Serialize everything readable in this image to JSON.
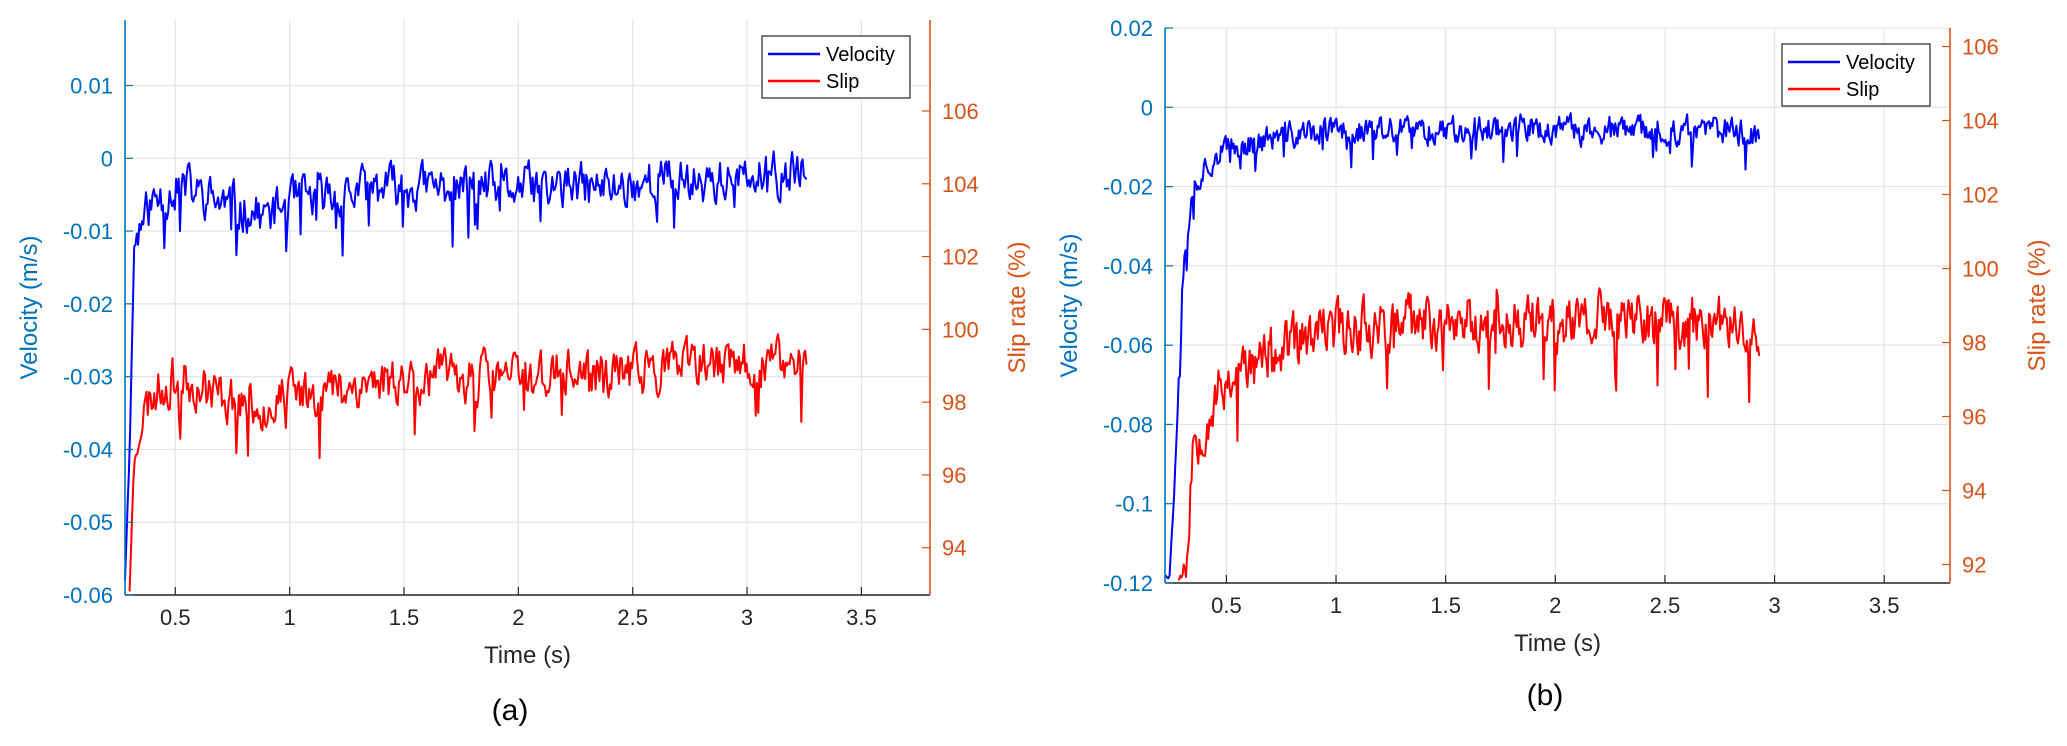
{
  "chart_data": [
    {
      "type": "line",
      "panel_label": "(a)",
      "xlabel": "Time (s)",
      "ylabel_left": "Velocity (m/s)",
      "ylabel_right": "Slip rate (%)",
      "xlim": [
        0.28,
        3.8
      ],
      "ylim_left": [
        -0.06,
        0.019
      ],
      "ylim_right": [
        92.7,
        108.5
      ],
      "xticks": [
        0.5,
        1,
        1.5,
        2,
        2.5,
        3,
        3.5
      ],
      "xtick_labels": [
        "0.5",
        "1",
        "1.5",
        "2",
        "2.5",
        "3",
        "3.5"
      ],
      "yticks_left": [
        -0.06,
        -0.05,
        -0.04,
        -0.03,
        -0.02,
        -0.01,
        0,
        0.01
      ],
      "ytick_labels_left": [
        "-0.06",
        "-0.05",
        "-0.04",
        "-0.03",
        "-0.02",
        "-0.01",
        "0",
        "0.01"
      ],
      "yticks_right": [
        94,
        96,
        98,
        100,
        102,
        104,
        106
      ],
      "ytick_labels_right": [
        "94",
        "96",
        "98",
        "100",
        "102",
        "104",
        "106"
      ],
      "grid": true,
      "legend_position": "top-right",
      "series": [
        {
          "name": "Velocity",
          "axis": "left",
          "color": "#0000ff",
          "x": [
            0.28,
            0.3,
            0.32,
            0.35,
            0.4,
            0.45,
            0.5,
            0.55,
            0.6,
            0.7,
            0.8,
            0.9,
            1.0,
            1.2,
            1.4,
            1.6,
            1.8,
            2.0,
            2.2,
            2.4,
            2.6,
            2.8,
            3.0,
            3.26
          ],
          "y": [
            -0.058,
            -0.04,
            -0.012,
            -0.009,
            -0.006,
            -0.005,
            -0.004,
            -0.004,
            -0.005,
            -0.006,
            -0.007,
            -0.008,
            -0.006,
            -0.005,
            -0.004,
            -0.004,
            -0.004,
            -0.004,
            -0.004,
            -0.004,
            -0.003,
            -0.003,
            -0.003,
            -0.002
          ],
          "noise": 0.0035,
          "seed": 11
        },
        {
          "name": "Slip",
          "axis": "right",
          "color": "#ff0000",
          "x": [
            0.3,
            0.32,
            0.35,
            0.4,
            0.45,
            0.5,
            0.55,
            0.6,
            0.7,
            0.8,
            0.9,
            1.0,
            1.2,
            1.4,
            1.6,
            1.8,
            2.0,
            2.2,
            2.4,
            2.6,
            2.8,
            3.0,
            3.26
          ],
          "y": [
            92.8,
            96.5,
            97.5,
            98.2,
            98.5,
            98.6,
            98.6,
            98.5,
            98.2,
            98.0,
            97.9,
            98.2,
            98.4,
            98.6,
            98.7,
            98.7,
            98.7,
            98.8,
            98.8,
            98.9,
            99.0,
            99.0,
            99.1
          ],
          "noise": 0.75,
          "seed": 23
        }
      ]
    },
    {
      "type": "line",
      "panel_label": "(b)",
      "xlabel": "Time (s)",
      "ylabel_left": "Velocity (m/s)",
      "ylabel_right": "Slip rate (%)",
      "xlim": [
        0.22,
        3.8
      ],
      "ylim_left": [
        -0.12,
        0.02
      ],
      "ylim_right": [
        91.5,
        106.5
      ],
      "xticks": [
        0.5,
        1,
        1.5,
        2,
        2.5,
        3,
        3.5
      ],
      "xtick_labels": [
        "0.5",
        "1",
        "1.5",
        "2",
        "2.5",
        "3",
        "3.5"
      ],
      "yticks_left": [
        -0.12,
        -0.1,
        -0.08,
        -0.06,
        -0.04,
        -0.02,
        0,
        0.02
      ],
      "ytick_labels_left": [
        "-0.12",
        "-0.1",
        "-0.08",
        "-0.06",
        "-0.04",
        "-0.02",
        "0",
        "0.02"
      ],
      "yticks_right": [
        92,
        94,
        96,
        98,
        100,
        102,
        104,
        106
      ],
      "ytick_labels_right": [
        "92",
        "94",
        "96",
        "98",
        "100",
        "102",
        "104",
        "106"
      ],
      "grid": true,
      "legend_position": "top-right",
      "series": [
        {
          "name": "Velocity",
          "axis": "left",
          "color": "#0000ff",
          "x": [
            0.22,
            0.24,
            0.26,
            0.3,
            0.35,
            0.4,
            0.45,
            0.5,
            0.6,
            0.7,
            0.8,
            1.0,
            1.2,
            1.4,
            1.6,
            1.8,
            2.0,
            2.2,
            2.4,
            2.6,
            2.8,
            2.93
          ],
          "y": [
            -0.118,
            -0.118,
            -0.1,
            -0.04,
            -0.02,
            -0.015,
            -0.012,
            -0.011,
            -0.009,
            -0.008,
            -0.007,
            -0.006,
            -0.006,
            -0.006,
            -0.005,
            -0.005,
            -0.006,
            -0.006,
            -0.006,
            -0.006,
            -0.006,
            -0.007
          ],
          "noise": 0.004,
          "seed": 37
        },
        {
          "name": "Slip",
          "axis": "right",
          "color": "#ff0000",
          "x": [
            0.28,
            0.32,
            0.35,
            0.4,
            0.45,
            0.5,
            0.6,
            0.7,
            0.8,
            0.9,
            1.0,
            1.2,
            1.4,
            1.6,
            1.8,
            2.0,
            2.2,
            2.4,
            2.6,
            2.8,
            2.93
          ],
          "y": [
            91.6,
            92.0,
            95.5,
            95.8,
            96.5,
            97.0,
            97.3,
            97.7,
            97.9,
            98.1,
            98.4,
            98.5,
            98.5,
            98.6,
            98.6,
            98.5,
            98.6,
            98.6,
            98.5,
            98.6,
            98.3
          ],
          "noise": 0.85,
          "seed": 53
        }
      ]
    }
  ]
}
